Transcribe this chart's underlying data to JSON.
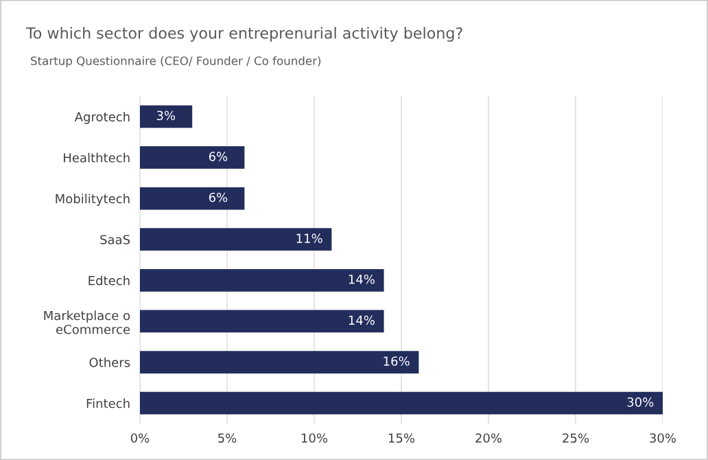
{
  "chart_data": {
    "type": "bar",
    "orientation": "horizontal",
    "title": "To which sector does your entreprenurial activity belong?",
    "subtitle": "Startup Questionnaire (CEO/ Founder / Co founder)",
    "categories": [
      "Agrotech",
      "Healthtech",
      "Mobilitytech",
      "SaaS",
      "Edtech",
      "Marketplace o\neCommerce",
      "Others",
      "Fintech"
    ],
    "values": [
      3,
      6,
      6,
      11,
      14,
      14,
      16,
      30
    ],
    "color": "#222d5c",
    "data_labels": true,
    "value_labels": [
      "3%",
      "6%",
      "6%",
      "11%",
      "14%",
      "14%",
      "16%",
      "30%"
    ],
    "xlim": [
      0,
      30
    ],
    "xticks": [
      {
        "value": 0,
        "label": "0%"
      },
      {
        "value": 5,
        "label": "5%"
      },
      {
        "value": 10,
        "label": "10%"
      },
      {
        "value": 15,
        "label": "15%"
      },
      {
        "value": 20,
        "label": "20%"
      },
      {
        "value": 25,
        "label": "25%"
      },
      {
        "value": 30,
        "label": "30%"
      }
    ],
    "grid": "x",
    "legend": false
  }
}
